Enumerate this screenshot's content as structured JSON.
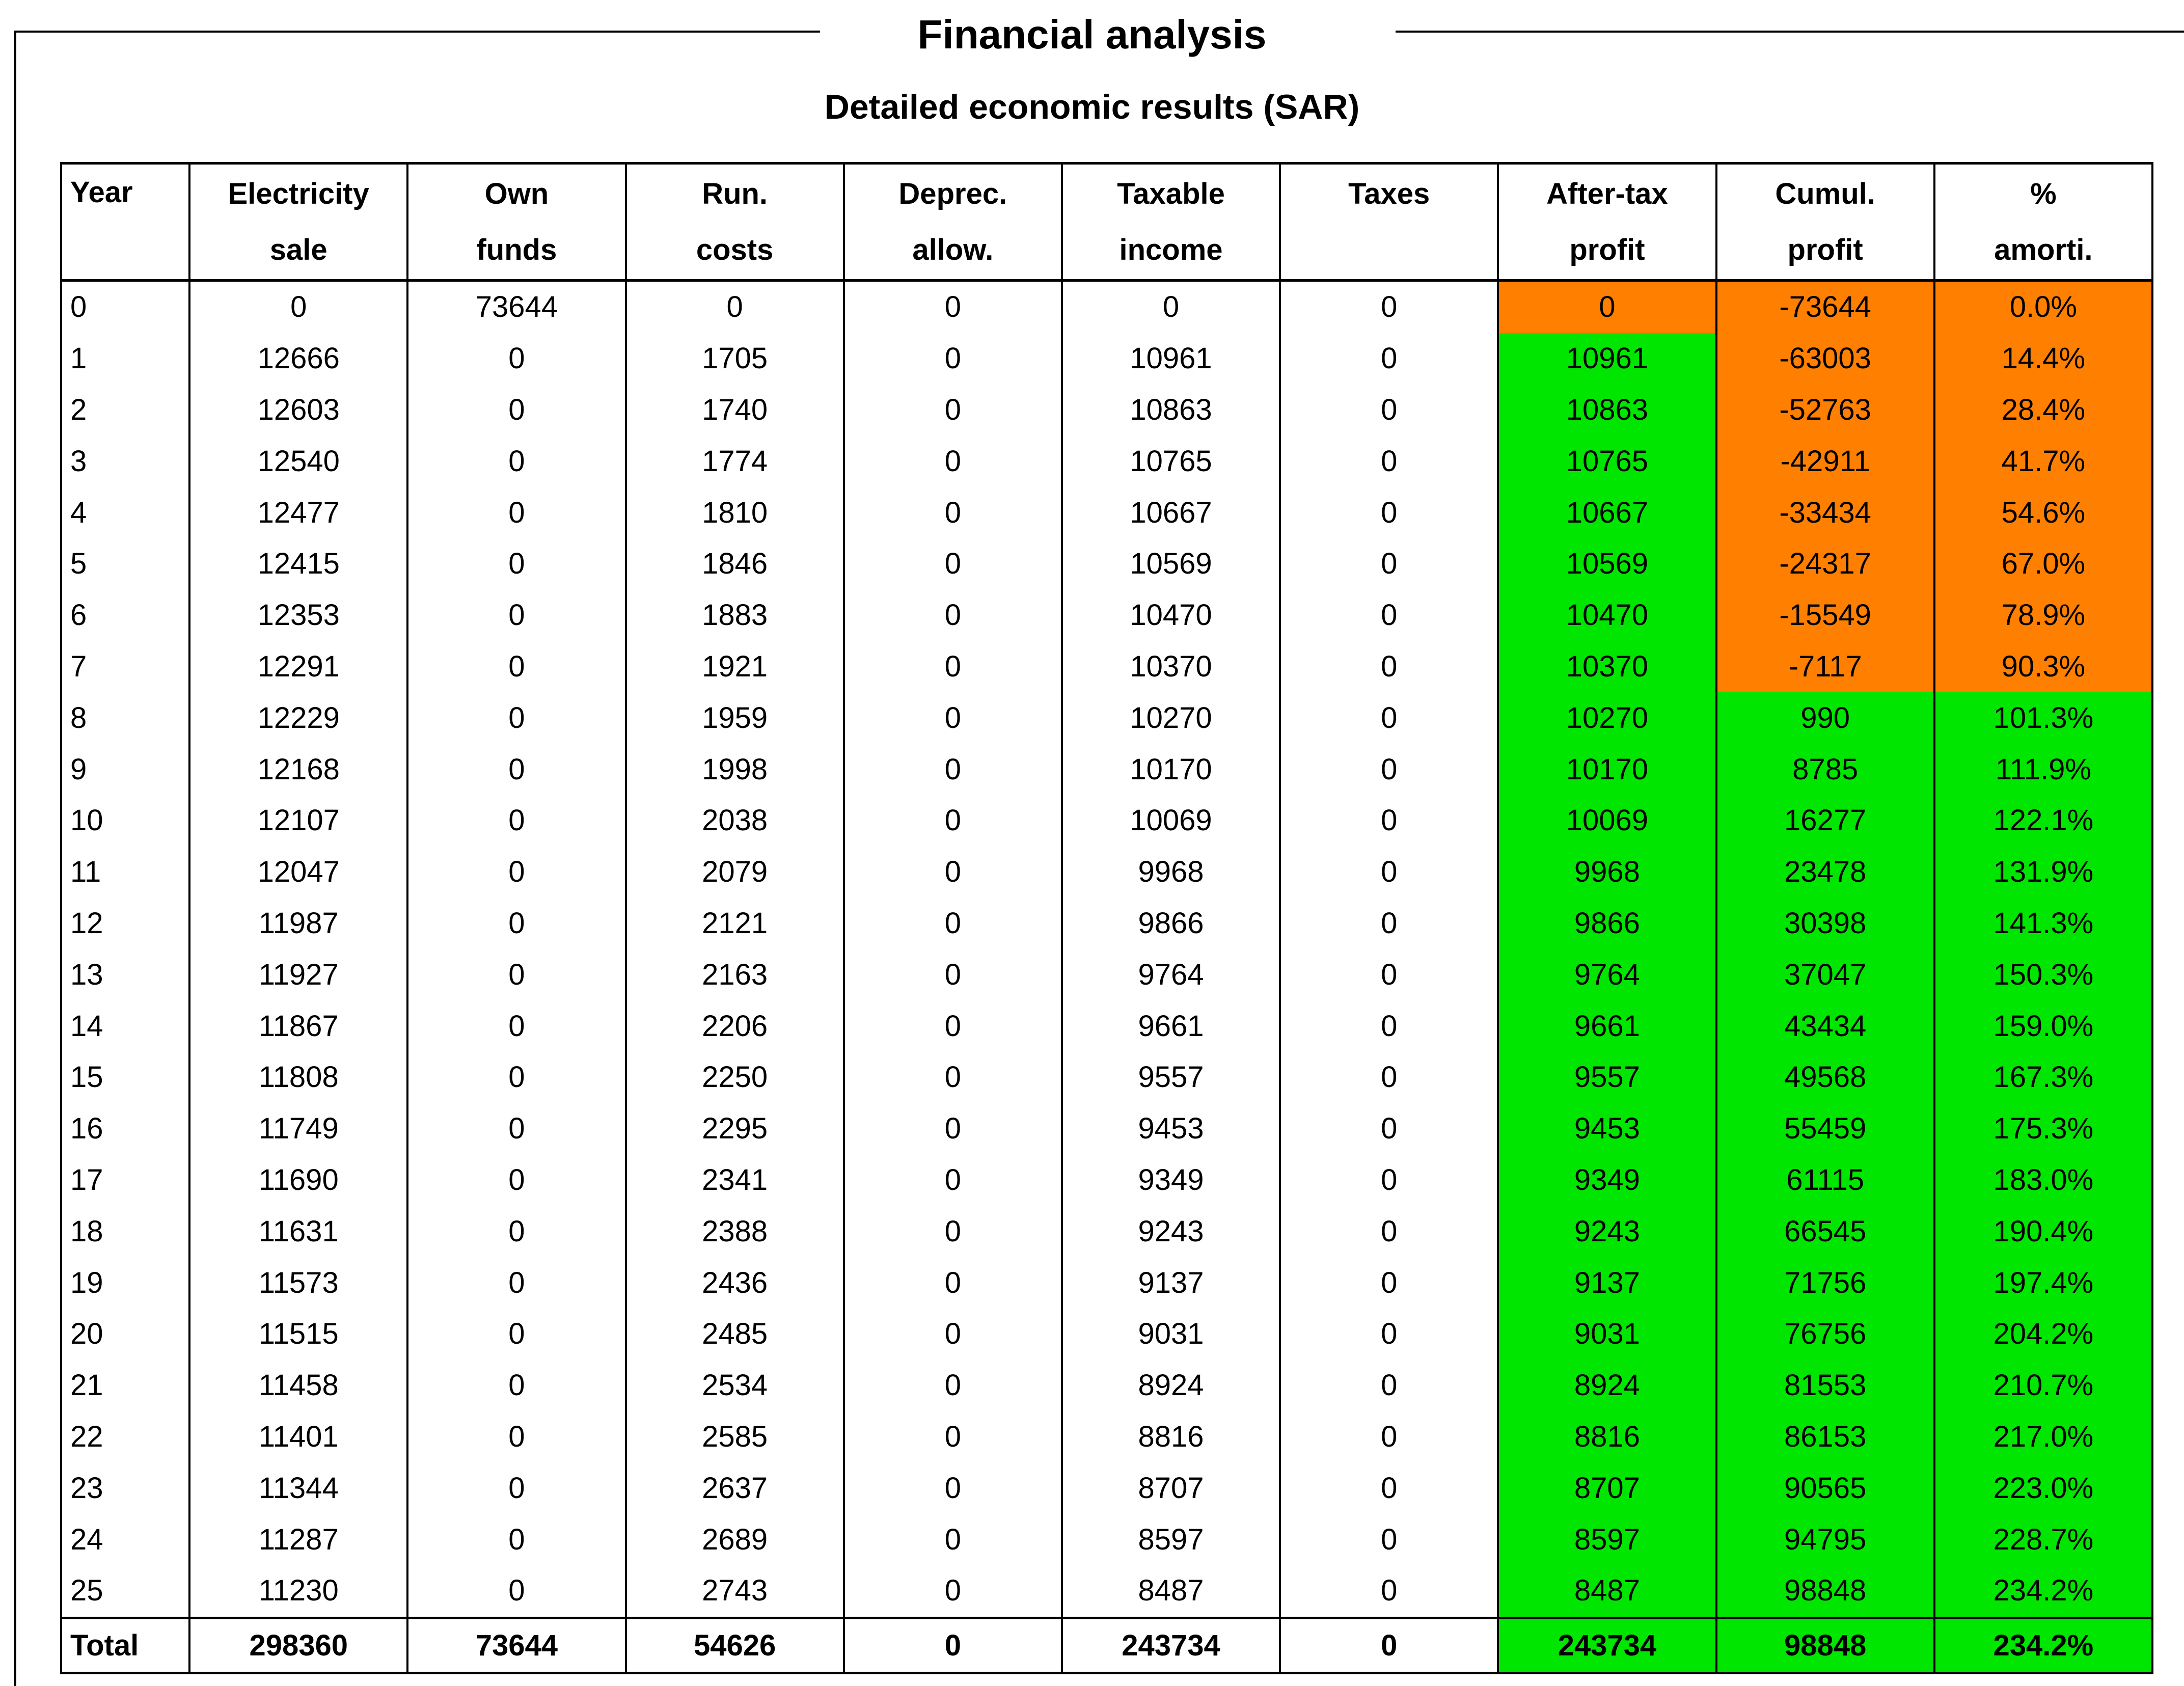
{
  "title": "Financial analysis",
  "subtitle": "Detailed economic results (SAR)",
  "colors": {
    "orange": "#ff7f00",
    "green": "#00e600"
  },
  "table": {
    "headers": [
      {
        "line1": "Year",
        "line2": ""
      },
      {
        "line1": "Electricity",
        "line2": "sale"
      },
      {
        "line1": "Own",
        "line2": "funds"
      },
      {
        "line1": "Run.",
        "line2": "costs"
      },
      {
        "line1": "Deprec.",
        "line2": "allow."
      },
      {
        "line1": "Taxable",
        "line2": "income"
      },
      {
        "line1": "Taxes",
        "line2": ""
      },
      {
        "line1": "After-tax",
        "line2": "profit"
      },
      {
        "line1": "Cumul.",
        "line2": "profit"
      },
      {
        "line1": "%",
        "line2": "amorti."
      }
    ],
    "rows": [
      [
        "0",
        "0",
        "73644",
        "0",
        "0",
        "0",
        "0",
        "0",
        "-73644",
        "0.0%"
      ],
      [
        "1",
        "12666",
        "0",
        "1705",
        "0",
        "10961",
        "0",
        "10961",
        "-63003",
        "14.4%"
      ],
      [
        "2",
        "12603",
        "0",
        "1740",
        "0",
        "10863",
        "0",
        "10863",
        "-52763",
        "28.4%"
      ],
      [
        "3",
        "12540",
        "0",
        "1774",
        "0",
        "10765",
        "0",
        "10765",
        "-42911",
        "41.7%"
      ],
      [
        "4",
        "12477",
        "0",
        "1810",
        "0",
        "10667",
        "0",
        "10667",
        "-33434",
        "54.6%"
      ],
      [
        "5",
        "12415",
        "0",
        "1846",
        "0",
        "10569",
        "0",
        "10569",
        "-24317",
        "67.0%"
      ],
      [
        "6",
        "12353",
        "0",
        "1883",
        "0",
        "10470",
        "0",
        "10470",
        "-15549",
        "78.9%"
      ],
      [
        "7",
        "12291",
        "0",
        "1921",
        "0",
        "10370",
        "0",
        "10370",
        "-7117",
        "90.3%"
      ],
      [
        "8",
        "12229",
        "0",
        "1959",
        "0",
        "10270",
        "0",
        "10270",
        "990",
        "101.3%"
      ],
      [
        "9",
        "12168",
        "0",
        "1998",
        "0",
        "10170",
        "0",
        "10170",
        "8785",
        "111.9%"
      ],
      [
        "10",
        "12107",
        "0",
        "2038",
        "0",
        "10069",
        "0",
        "10069",
        "16277",
        "122.1%"
      ],
      [
        "11",
        "12047",
        "0",
        "2079",
        "0",
        "9968",
        "0",
        "9968",
        "23478",
        "131.9%"
      ],
      [
        "12",
        "11987",
        "0",
        "2121",
        "0",
        "9866",
        "0",
        "9866",
        "30398",
        "141.3%"
      ],
      [
        "13",
        "11927",
        "0",
        "2163",
        "0",
        "9764",
        "0",
        "9764",
        "37047",
        "150.3%"
      ],
      [
        "14",
        "11867",
        "0",
        "2206",
        "0",
        "9661",
        "0",
        "9661",
        "43434",
        "159.0%"
      ],
      [
        "15",
        "11808",
        "0",
        "2250",
        "0",
        "9557",
        "0",
        "9557",
        "49568",
        "167.3%"
      ],
      [
        "16",
        "11749",
        "0",
        "2295",
        "0",
        "9453",
        "0",
        "9453",
        "55459",
        "175.3%"
      ],
      [
        "17",
        "11690",
        "0",
        "2341",
        "0",
        "9349",
        "0",
        "9349",
        "61115",
        "183.0%"
      ],
      [
        "18",
        "11631",
        "0",
        "2388",
        "0",
        "9243",
        "0",
        "9243",
        "66545",
        "190.4%"
      ],
      [
        "19",
        "11573",
        "0",
        "2436",
        "0",
        "9137",
        "0",
        "9137",
        "71756",
        "197.4%"
      ],
      [
        "20",
        "11515",
        "0",
        "2485",
        "0",
        "9031",
        "0",
        "9031",
        "76756",
        "204.2%"
      ],
      [
        "21",
        "11458",
        "0",
        "2534",
        "0",
        "8924",
        "0",
        "8924",
        "81553",
        "210.7%"
      ],
      [
        "22",
        "11401",
        "0",
        "2585",
        "0",
        "8816",
        "0",
        "8816",
        "86153",
        "217.0%"
      ],
      [
        "23",
        "11344",
        "0",
        "2637",
        "0",
        "8707",
        "0",
        "8707",
        "90565",
        "223.0%"
      ],
      [
        "24",
        "11287",
        "0",
        "2689",
        "0",
        "8597",
        "0",
        "8597",
        "94795",
        "228.7%"
      ],
      [
        "25",
        "11230",
        "0",
        "2743",
        "0",
        "8487",
        "0",
        "8487",
        "98848",
        "234.2%"
      ]
    ],
    "highlights": [
      [
        "orange",
        "orange",
        "orange"
      ],
      [
        "green",
        "orange",
        "orange"
      ],
      [
        "green",
        "orange",
        "orange"
      ],
      [
        "green",
        "orange",
        "orange"
      ],
      [
        "green",
        "orange",
        "orange"
      ],
      [
        "green",
        "orange",
        "orange"
      ],
      [
        "green",
        "orange",
        "orange"
      ],
      [
        "green",
        "orange",
        "orange"
      ],
      [
        "green",
        "green",
        "green"
      ],
      [
        "green",
        "green",
        "green"
      ],
      [
        "green",
        "green",
        "green"
      ],
      [
        "green",
        "green",
        "green"
      ],
      [
        "green",
        "green",
        "green"
      ],
      [
        "green",
        "green",
        "green"
      ],
      [
        "green",
        "green",
        "green"
      ],
      [
        "green",
        "green",
        "green"
      ],
      [
        "green",
        "green",
        "green"
      ],
      [
        "green",
        "green",
        "green"
      ],
      [
        "green",
        "green",
        "green"
      ],
      [
        "green",
        "green",
        "green"
      ],
      [
        "green",
        "green",
        "green"
      ],
      [
        "green",
        "green",
        "green"
      ],
      [
        "green",
        "green",
        "green"
      ],
      [
        "green",
        "green",
        "green"
      ],
      [
        "green",
        "green",
        "green"
      ],
      [
        "green",
        "green",
        "green"
      ]
    ],
    "total": [
      "Total",
      "298360",
      "73644",
      "54626",
      "0",
      "243734",
      "0",
      "243734",
      "98848",
      "234.2%"
    ],
    "total_highlights": [
      "green",
      "green",
      "green"
    ]
  }
}
